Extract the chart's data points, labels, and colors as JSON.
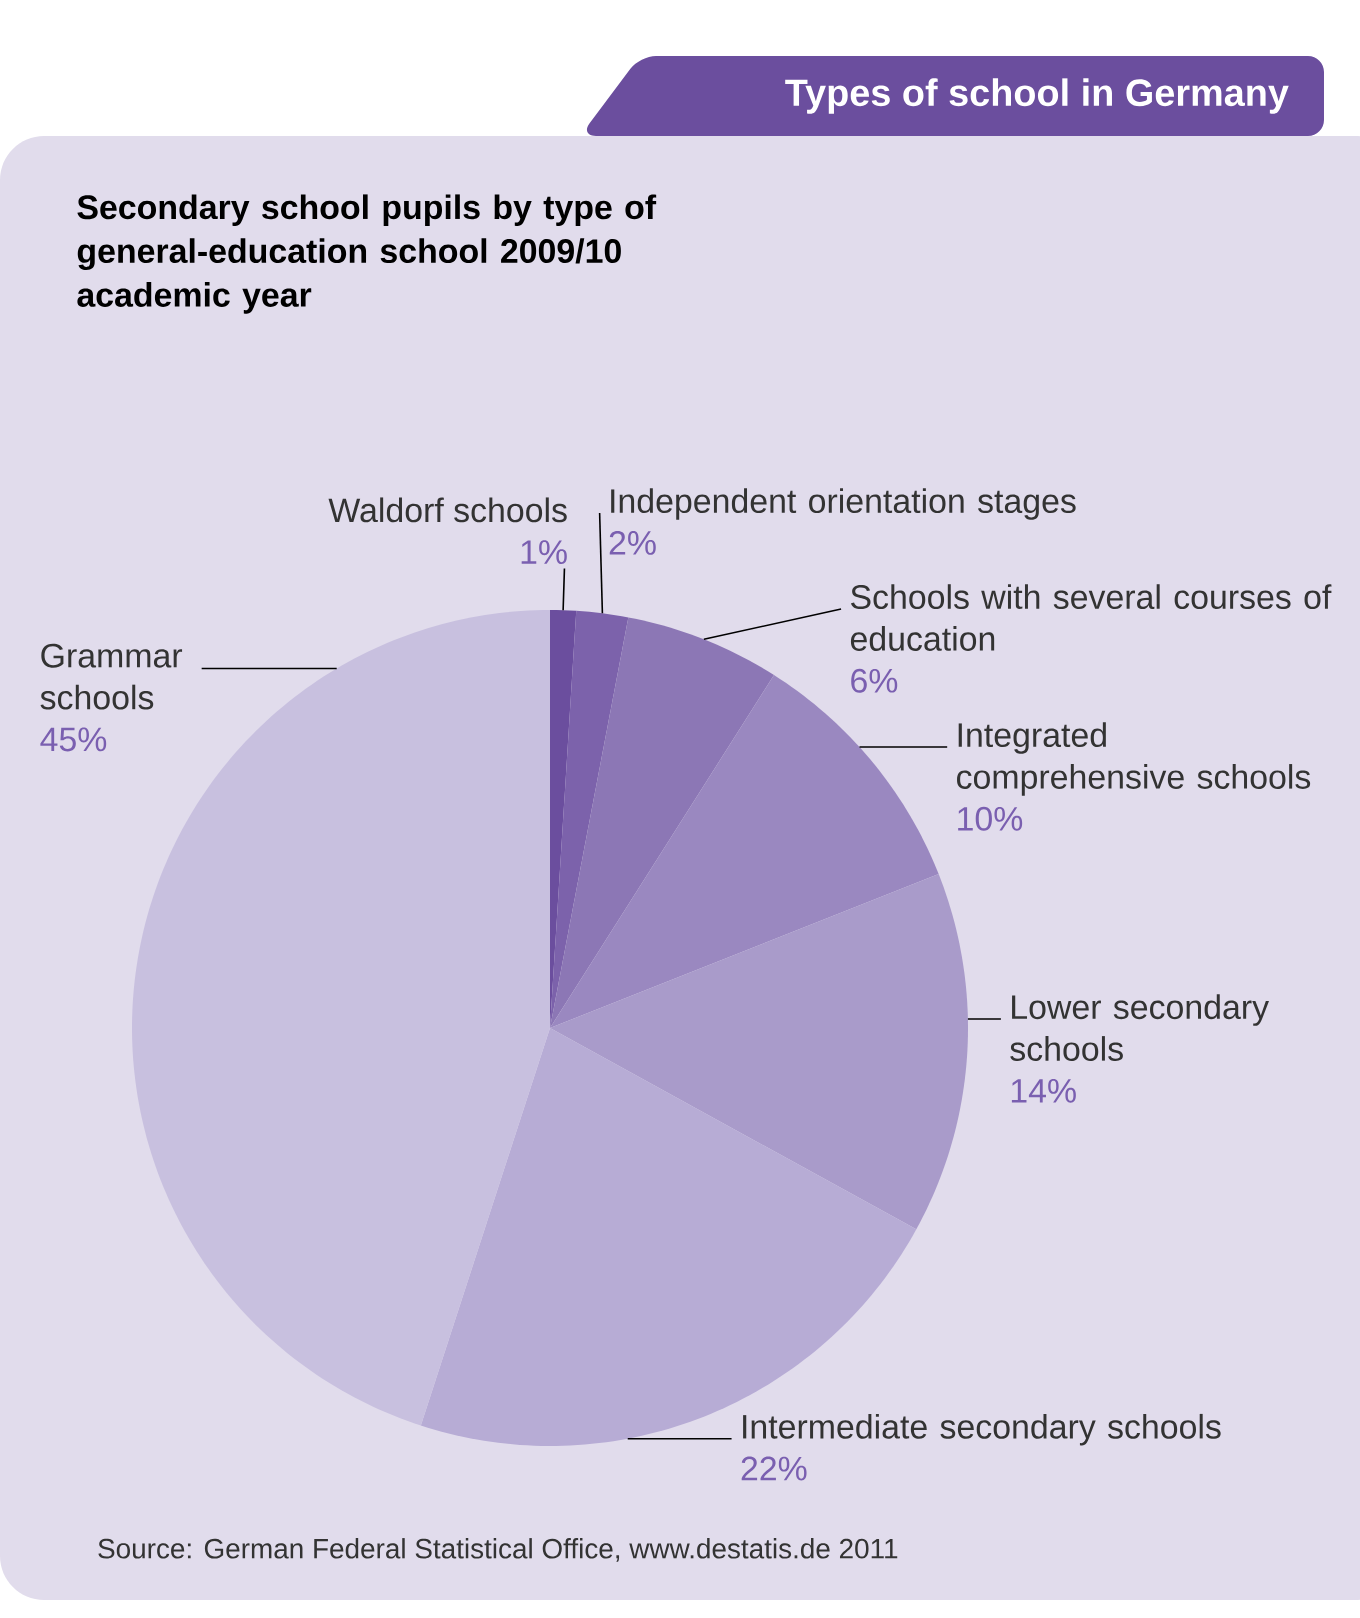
{
  "chart_data": {
    "type": "pie",
    "title": "Types of school in Germany",
    "subtitle": "Secondary school pupils by type of general-education school 2009/10 academic year",
    "categories": [
      "Waldorf schools",
      "Independent orientation stages",
      "Schools with several courses of education",
      "Integrated comprehensive schools",
      "Lower secondary schools",
      "Intermediate secondary schools",
      "Grammar schools"
    ],
    "values": [
      1,
      2,
      6,
      10,
      14,
      22,
      45
    ],
    "value_labels": [
      "1%",
      "2%",
      "6%",
      "10%",
      "14%",
      "22%",
      "45%"
    ],
    "colors": [
      "#6b4e9e",
      "#7c62ab",
      "#8c77b5",
      "#9a88c0",
      "#a99bca",
      "#b7acd5",
      "#c8c0df"
    ],
    "legend": false,
    "annotations": [
      "Source: German Federal Statistical Office, www.destatis.de 2011"
    ]
  }
}
